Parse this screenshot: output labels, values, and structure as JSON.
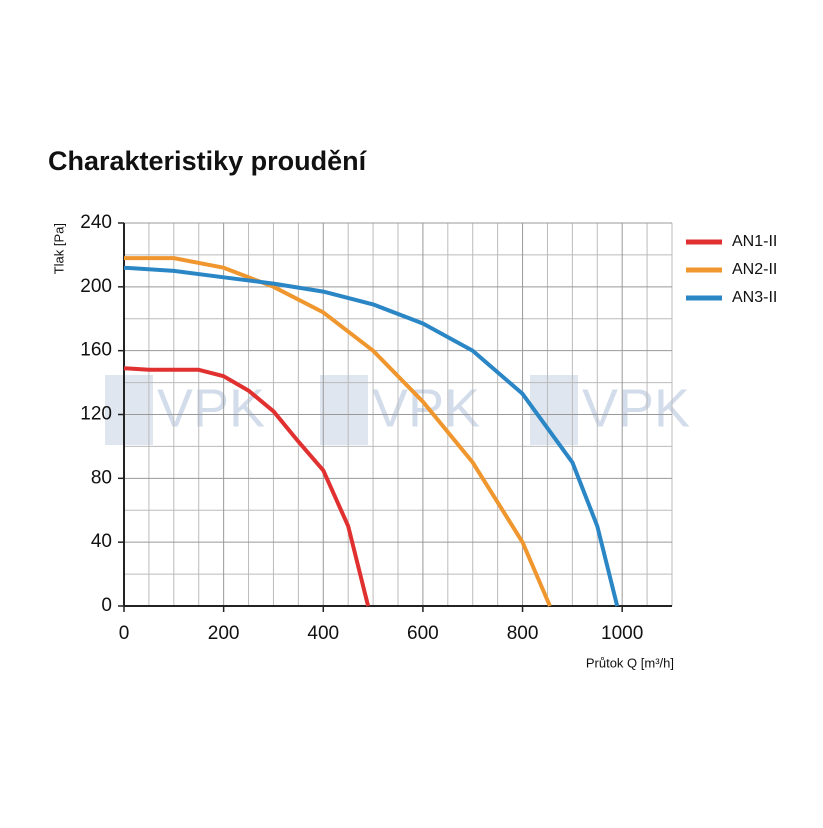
{
  "chart_data": {
    "type": "line",
    "title": "Charakteristiky proudění",
    "x_label": "Průtok Q [m³/h]",
    "y_label": "Tlak [Pa]",
    "xlim": [
      0,
      1100
    ],
    "ylim": [
      0,
      240
    ],
    "xticks": [
      0,
      200,
      400,
      600,
      800,
      1000
    ],
    "yticks": [
      0,
      40,
      80,
      120,
      160,
      200,
      240
    ],
    "xminorticks": [
      50,
      100,
      150,
      250,
      300,
      350,
      450,
      500,
      550,
      650,
      700,
      750,
      850,
      900,
      950,
      1050,
      1100
    ],
    "yminorticks": [
      20,
      60,
      100,
      140,
      180,
      220
    ],
    "grid": true,
    "legend": "right",
    "watermark": "VPK",
    "series": [
      {
        "name": "AN1-II",
        "color": "#e03030",
        "x": [
          0,
          50,
          100,
          150,
          200,
          250,
          300,
          350,
          400,
          450,
          490
        ],
        "values": [
          149,
          148,
          148,
          148,
          144,
          135,
          122,
          103,
          85,
          50,
          0
        ]
      },
      {
        "name": "AN2-II",
        "color": "#f0962e",
        "x": [
          0,
          100,
          200,
          300,
          400,
          500,
          600,
          700,
          800,
          855
        ],
        "values": [
          218,
          218,
          212,
          200,
          184,
          160,
          128,
          90,
          40,
          0
        ]
      },
      {
        "name": "AN3-II",
        "color": "#2b86c6",
        "x": [
          0,
          100,
          200,
          300,
          400,
          500,
          600,
          700,
          800,
          900,
          950,
          990
        ],
        "values": [
          212,
          210,
          206,
          202,
          197,
          189,
          177,
          160,
          133,
          90,
          50,
          0
        ]
      }
    ]
  }
}
